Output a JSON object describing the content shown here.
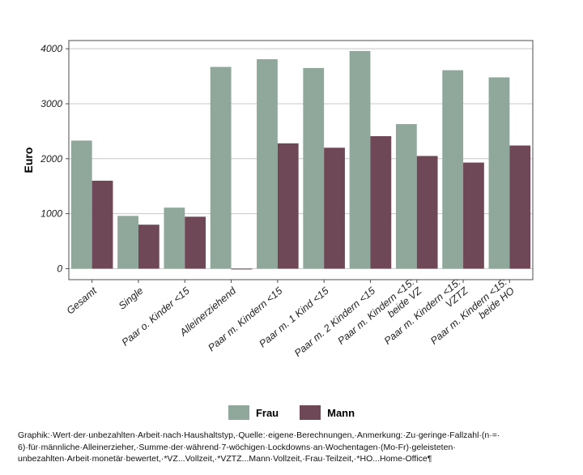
{
  "chart_data": {
    "type": "bar",
    "ylabel": "Euro",
    "ylim": [
      -200,
      4150
    ],
    "yticks": [
      0,
      1000,
      2000,
      3000,
      4000
    ],
    "grid": true,
    "legend_position": "bottom",
    "categories": [
      [
        "Gesamt"
      ],
      [
        "Single"
      ],
      [
        "Paar o. Kinder <15"
      ],
      [
        "Alleinerziehend"
      ],
      [
        "Paar m. Kindern <15"
      ],
      [
        "Paar m. 1 Kind <15"
      ],
      [
        "Paar m. 2 Kindern <15"
      ],
      [
        "Paar m. Kindern <15:",
        "beide VZ"
      ],
      [
        "Paar m. Kindern <15:",
        "VZTZ"
      ],
      [
        "Paar m. Kindern <15:",
        "beide HO"
      ]
    ],
    "series": [
      {
        "name": "Frau",
        "color": "#8fa89b",
        "values": [
          2330,
          960,
          1110,
          3670,
          3810,
          3650,
          3960,
          2630,
          3610,
          3480
        ]
      },
      {
        "name": "Mann",
        "color": "#6e4857",
        "values": [
          1600,
          800,
          945,
          0,
          2280,
          2200,
          2410,
          2050,
          1930,
          2240
        ]
      }
    ]
  },
  "caption": {
    "lines": [
      "Graphik:·Wert·der·unbezahlten·Arbeit·nach·Haushaltstyp,·Quelle:·eigene·Berechnungen,·Anmerkung:·Zu·geringe·Fallzahl·(n·=·",
      "6)·für·männliche·Alleinerzieher,·Summe·der·während·7-wöchigen·Lockdowns·an·Wochentagen·(Mo-Fr)·geleisteten·",
      "unbezahlten·Arbeit·monetär·bewertet,·*VZ...Vollzeit,·*VZTZ...Mann·Vollzeit,·Frau·Teilzeit,·*HO...Home-Office¶"
    ]
  }
}
